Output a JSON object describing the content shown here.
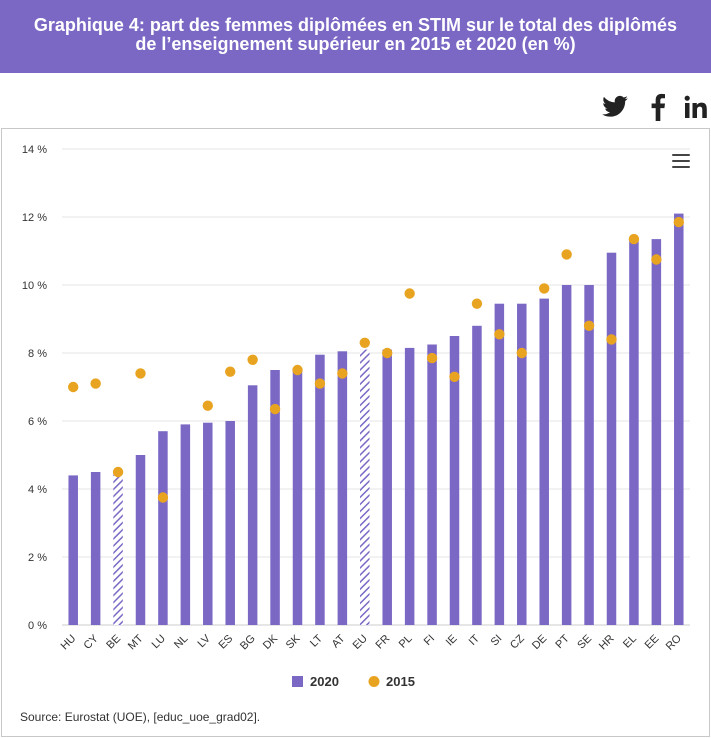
{
  "title": {
    "line1": "Graphique 4: part des femmes diplômées en STIM sur le total des diplômés",
    "line2": "de l’enseignement supérieur en 2015 et 2020 (en %)"
  },
  "social": [
    {
      "name": "twitter-icon",
      "color": "#222222"
    },
    {
      "name": "facebook-icon",
      "color": "#222222"
    },
    {
      "name": "linkedin-icon",
      "color": "#222222"
    }
  ],
  "menu": {
    "icon": "hamburger-menu-icon"
  },
  "source": "Source: Eurostat (UOE), [educ_uoe_grad02].",
  "colors": {
    "bar": "#7b68c5",
    "dot": "#e8a420",
    "title_bg": "#7b68c5",
    "grid": "#e6e6e6"
  },
  "chart_data": {
    "type": "bar",
    "categories": [
      "HU",
      "CY",
      "BE",
      "MT",
      "LU",
      "NL",
      "LV",
      "ES",
      "BG",
      "DK",
      "SK",
      "LT",
      "AT",
      "EU",
      "FR",
      "PL",
      "FI",
      "IE",
      "IT",
      "SI",
      "CZ",
      "DE",
      "PT",
      "SE",
      "HR",
      "EL",
      "EE",
      "RO"
    ],
    "series": [
      {
        "name": "2020",
        "kind": "bar",
        "values": [
          4.4,
          4.5,
          4.5,
          5.0,
          5.7,
          5.9,
          5.95,
          6.0,
          7.05,
          7.5,
          7.55,
          7.95,
          8.05,
          8.1,
          8.1,
          8.15,
          8.25,
          8.5,
          8.8,
          9.45,
          9.45,
          9.6,
          10.0,
          10.0,
          10.95,
          11.35,
          11.35,
          12.1
        ],
        "hatched": [
          "BE",
          "EU"
        ]
      },
      {
        "name": "2015",
        "kind": "dot",
        "values": [
          7.0,
          7.1,
          4.5,
          7.4,
          3.75,
          null,
          6.45,
          7.45,
          7.8,
          6.35,
          7.5,
          7.1,
          7.4,
          8.3,
          8.0,
          9.75,
          7.85,
          7.3,
          9.45,
          8.55,
          8.0,
          9.9,
          10.9,
          8.8,
          8.4,
          11.35,
          10.75,
          11.85
        ]
      }
    ],
    "y_ticks": [
      "0 %",
      "2 %",
      "4 %",
      "6 %",
      "8 %",
      "10 %",
      "12 %",
      "14 %"
    ],
    "ylim": [
      0,
      14
    ],
    "grid": true,
    "legend": {
      "placement": "bottom-center",
      "items": [
        "2020",
        "2015"
      ]
    }
  }
}
